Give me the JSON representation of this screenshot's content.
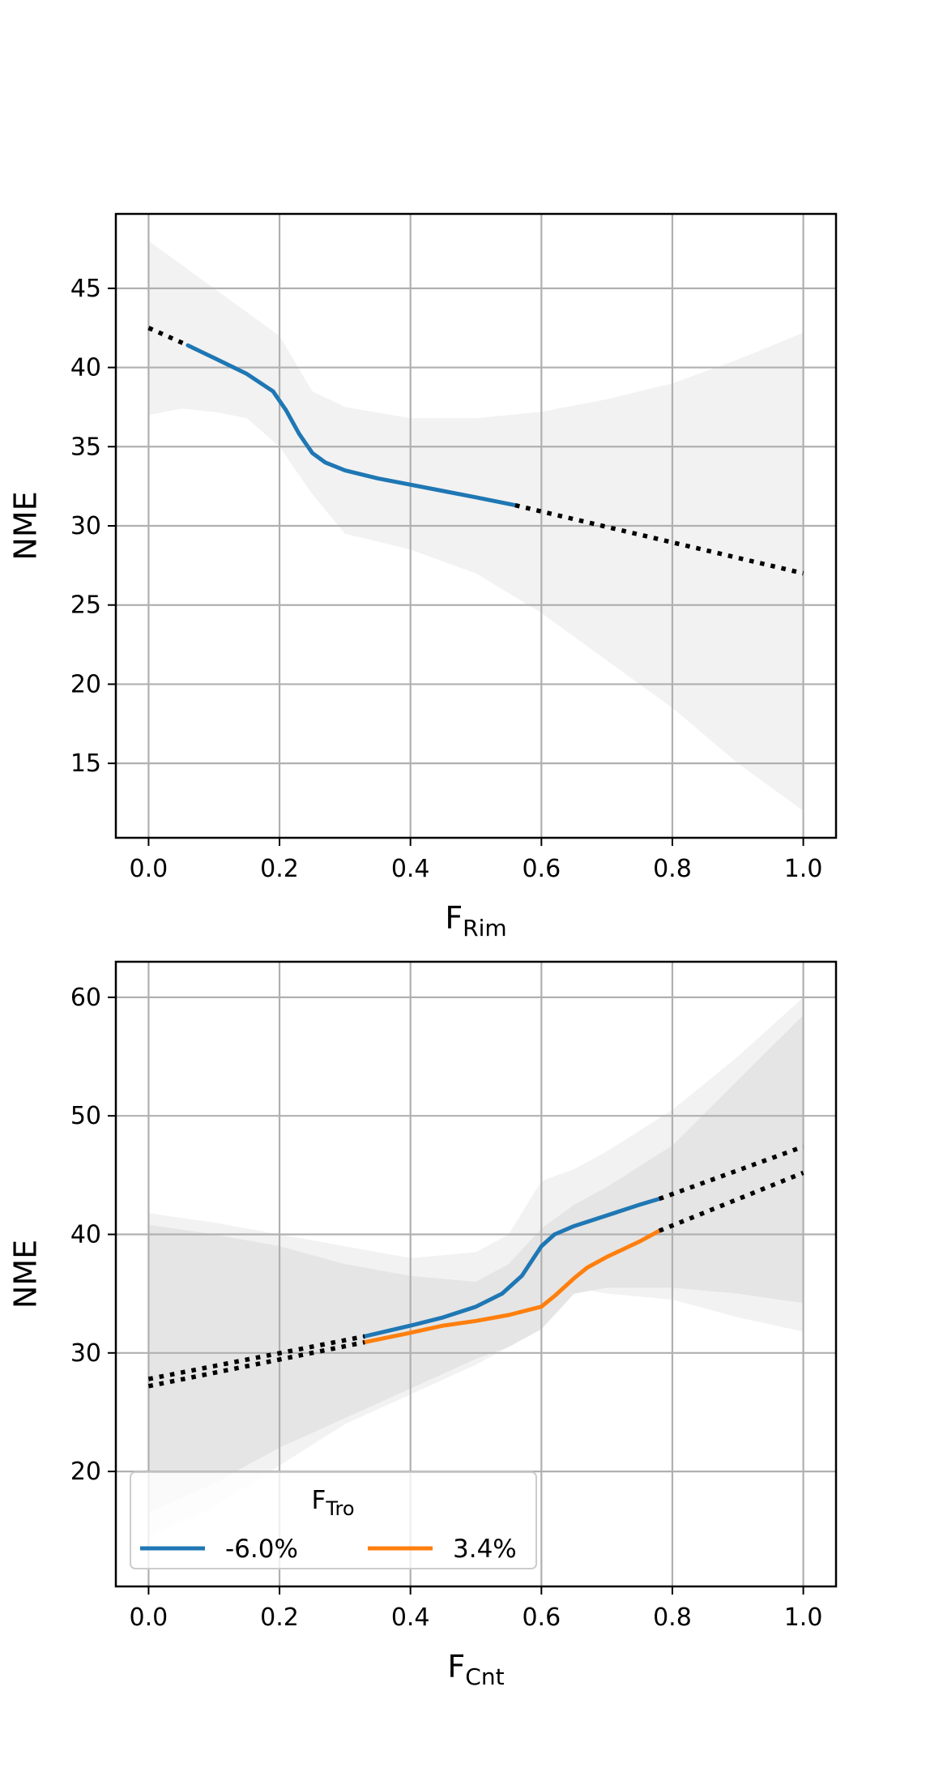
{
  "chart_data": [
    {
      "type": "line",
      "xlabel": "F",
      "xlabel_sub": "Rim",
      "ylabel": "NME",
      "xlim": [
        -0.05,
        1.05
      ],
      "ylim": [
        10.3,
        49.7
      ],
      "xticks": [
        0.0,
        0.2,
        0.4,
        0.6,
        0.8,
        1.0
      ],
      "xtick_labels": [
        "0.0",
        "0.2",
        "0.4",
        "0.6",
        "0.8",
        "1.0"
      ],
      "yticks": [
        15,
        20,
        25,
        30,
        35,
        40,
        45
      ],
      "ytick_labels": [
        "15",
        "20",
        "25",
        "30",
        "35",
        "40",
        "45"
      ],
      "grid": true,
      "legend": null,
      "series": [
        {
          "color": "#1f77b4",
          "style": "solid",
          "x": [
            0.06,
            0.1,
            0.15,
            0.19,
            0.21,
            0.23,
            0.25,
            0.27,
            0.3,
            0.35,
            0.4,
            0.45,
            0.5,
            0.56
          ],
          "y": [
            41.4,
            40.6,
            39.6,
            38.5,
            37.3,
            35.8,
            34.6,
            34.0,
            33.5,
            33.0,
            32.6,
            32.2,
            31.8,
            31.3
          ]
        },
        {
          "color": "#000000",
          "style": "dotted",
          "x": [
            0.0,
            0.06
          ],
          "y": [
            42.5,
            41.4
          ]
        },
        {
          "color": "#000000",
          "style": "dotted",
          "x": [
            0.56,
            1.0
          ],
          "y": [
            31.3,
            27.0
          ]
        }
      ],
      "bands": [
        {
          "color": "#f2f2f2",
          "x": [
            0.0,
            0.05,
            0.1,
            0.15,
            0.2,
            0.25,
            0.3,
            0.4,
            0.5,
            0.6,
            0.7,
            0.8,
            0.9,
            1.0
          ],
          "upper": [
            48.0,
            46.5,
            45.0,
            43.5,
            42.0,
            38.5,
            37.5,
            36.8,
            36.8,
            37.2,
            38.0,
            39.0,
            40.5,
            42.2
          ],
          "lower": [
            37.0,
            37.4,
            37.2,
            36.8,
            35.0,
            32.0,
            29.5,
            28.5,
            27.0,
            24.5,
            21.5,
            18.5,
            15.0,
            12.0
          ]
        }
      ]
    },
    {
      "type": "line",
      "xlabel": "F",
      "xlabel_sub": "Cnt",
      "ylabel": "NME",
      "xlim": [
        -0.05,
        1.05
      ],
      "ylim": [
        10.3,
        63.0
      ],
      "xticks": [
        0.0,
        0.2,
        0.4,
        0.6,
        0.8,
        1.0
      ],
      "xtick_labels": [
        "0.0",
        "0.2",
        "0.4",
        "0.6",
        "0.8",
        "1.0"
      ],
      "yticks": [
        20,
        30,
        40,
        50,
        60
      ],
      "ytick_labels": [
        "20",
        "30",
        "40",
        "50",
        "60"
      ],
      "grid": true,
      "legend": {
        "title": "F",
        "title_sub": "Tro",
        "placement": "lower-left",
        "entries": [
          {
            "label": "-6.0%",
            "color": "#1f77b4"
          },
          {
            "label": "3.4%",
            "color": "#ff7f0e"
          }
        ]
      },
      "series": [
        {
          "name": "-6.0%",
          "color": "#1f77b4",
          "style": "solid",
          "x": [
            0.33,
            0.4,
            0.45,
            0.5,
            0.54,
            0.57,
            0.6,
            0.62,
            0.65,
            0.7,
            0.75,
            0.78
          ],
          "y": [
            31.4,
            32.3,
            33.0,
            33.9,
            35.0,
            36.5,
            39.0,
            40.0,
            40.7,
            41.6,
            42.5,
            43.0
          ]
        },
        {
          "name": "3.4%",
          "color": "#ff7f0e",
          "style": "solid",
          "x": [
            0.33,
            0.4,
            0.45,
            0.5,
            0.55,
            0.6,
            0.62,
            0.65,
            0.67,
            0.7,
            0.75,
            0.78
          ],
          "y": [
            30.9,
            31.7,
            32.3,
            32.7,
            33.2,
            33.9,
            34.8,
            36.3,
            37.2,
            38.1,
            39.4,
            40.3
          ]
        },
        {
          "color": "#000000",
          "style": "dotted",
          "x": [
            0.0,
            0.33
          ],
          "y": [
            27.8,
            31.4
          ]
        },
        {
          "color": "#000000",
          "style": "dotted",
          "x": [
            0.0,
            0.33
          ],
          "y": [
            27.2,
            30.9
          ]
        },
        {
          "color": "#000000",
          "style": "dotted",
          "x": [
            0.78,
            1.0
          ],
          "y": [
            43.0,
            47.4
          ]
        },
        {
          "color": "#000000",
          "style": "dotted",
          "x": [
            0.78,
            1.0
          ],
          "y": [
            40.3,
            45.2
          ]
        }
      ],
      "bands": [
        {
          "color": "#f2f2f2",
          "x": [
            0.0,
            0.1,
            0.2,
            0.3,
            0.4,
            0.5,
            0.55,
            0.6,
            0.65,
            0.7,
            0.8,
            0.9,
            1.0
          ],
          "upper": [
            41.8,
            41.0,
            40.0,
            39.0,
            38.0,
            38.5,
            40.0,
            44.5,
            45.5,
            47.0,
            50.5,
            55.0,
            60.0
          ],
          "lower": [
            14.5,
            17.0,
            20.5,
            24.0,
            26.5,
            29.0,
            30.5,
            32.5,
            35.5,
            35.0,
            34.5,
            33.0,
            31.8
          ]
        },
        {
          "color": "#e5e5e5",
          "x": [
            0.0,
            0.1,
            0.2,
            0.3,
            0.4,
            0.5,
            0.55,
            0.6,
            0.65,
            0.7,
            0.8,
            0.9,
            1.0
          ],
          "upper": [
            40.8,
            40.0,
            39.0,
            37.5,
            36.5,
            36.0,
            37.5,
            40.5,
            42.5,
            44.0,
            47.5,
            53.0,
            58.5
          ],
          "lower": [
            16.5,
            19.0,
            22.0,
            24.5,
            27.0,
            29.5,
            30.5,
            32.0,
            35.0,
            35.5,
            35.5,
            35.0,
            34.2
          ]
        }
      ]
    }
  ]
}
